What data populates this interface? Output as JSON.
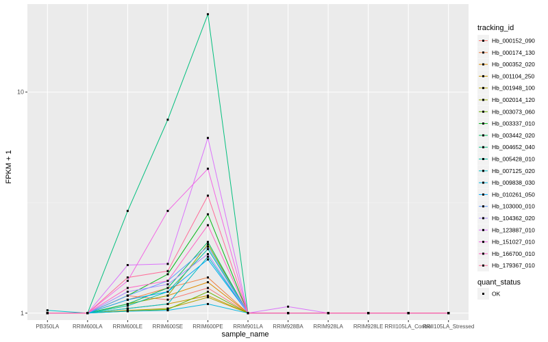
{
  "chart_data": {
    "type": "line",
    "xlabel": "sample_name",
    "ylabel": "FPKM + 1",
    "y_scale": "log10",
    "ylim": [
      0.93,
      25
    ],
    "y_ticks": [
      {
        "value": 1,
        "label": "1"
      },
      {
        "value": 10,
        "label": "10"
      }
    ],
    "grid": true,
    "legend_position": "right",
    "categories": [
      "PB350LA",
      "RRIM600LA",
      "RRIM600LE",
      "RRIM600SE",
      "RRIM600PE",
      "RRIM901LA",
      "RRIM928BA",
      "RRIM928LA",
      "RRIM928LE",
      "RRII105LA_Control",
      "RRII105LA_Stressed"
    ],
    "legend_title": "tracking_id",
    "series": [
      {
        "name": "Hb_000152_090",
        "color": "#F8766D",
        "values": [
          1,
          1,
          1.2,
          1.15,
          1.3,
          1,
          1,
          1,
          1,
          1,
          1
        ]
      },
      {
        "name": "Hb_000174_130",
        "color": "#EE8044",
        "values": [
          1,
          1,
          1.15,
          1.3,
          1.45,
          1,
          1,
          1,
          1,
          1,
          1
        ]
      },
      {
        "name": "Hb_000352_020",
        "color": "#DF8B00",
        "values": [
          1,
          1,
          1.1,
          1.2,
          1.38,
          1,
          1,
          1,
          1,
          1,
          1
        ]
      },
      {
        "name": "Hb_001104_250",
        "color": "#CC9600",
        "values": [
          1,
          1,
          1.05,
          1.1,
          1.2,
          1,
          1,
          1,
          1,
          1,
          1
        ]
      },
      {
        "name": "Hb_001948_100",
        "color": "#B3A000",
        "values": [
          1,
          1,
          1.03,
          1.05,
          1.18,
          1,
          1,
          1,
          1,
          1,
          1
        ]
      },
      {
        "name": "Hb_002014_120",
        "color": "#95A900",
        "values": [
          1,
          1,
          1.1,
          1.2,
          2.05,
          1,
          1,
          1,
          1,
          1,
          1
        ]
      },
      {
        "name": "Hb_003073_060",
        "color": "#6BB100",
        "values": [
          1,
          1,
          1.02,
          1.04,
          1.25,
          1,
          1,
          1,
          1,
          1,
          1
        ]
      },
      {
        "name": "Hb_003337_010",
        "color": "#00B813",
        "values": [
          1,
          1,
          1.2,
          1.5,
          2.8,
          1,
          1,
          1,
          1,
          1,
          1
        ]
      },
      {
        "name": "Hb_003442_020",
        "color": "#00BD5C",
        "values": [
          1,
          1,
          1.1,
          1.3,
          2.1,
          1,
          1,
          1,
          1,
          1,
          1
        ]
      },
      {
        "name": "Hb_004652_040",
        "color": "#00BF7D",
        "values": [
          1,
          1,
          2.9,
          7.5,
          22.5,
          1,
          1,
          1,
          1,
          1,
          1
        ]
      },
      {
        "name": "Hb_005428_010",
        "color": "#00C0A3",
        "values": [
          1,
          1,
          1.08,
          1.25,
          1.95,
          1,
          1,
          1,
          1,
          1,
          1
        ]
      },
      {
        "name": "Hb_007125_020",
        "color": "#00BCC4",
        "values": [
          1.03,
          1,
          1.05,
          1.1,
          1.8,
          1,
          1,
          1,
          1,
          1,
          1
        ]
      },
      {
        "name": "Hb_009838_030",
        "color": "#00B5E0",
        "values": [
          1,
          1,
          1.02,
          1.03,
          1.1,
          1,
          1,
          1,
          1,
          1,
          1
        ]
      },
      {
        "name": "Hb_010261_050",
        "color": "#00A8F8",
        "values": [
          1,
          1,
          1.15,
          1.25,
          1.75,
          1,
          1,
          1,
          1,
          1,
          1
        ]
      },
      {
        "name": "Hb_103000_010",
        "color": "#619CFF",
        "values": [
          1,
          1,
          1.2,
          1.4,
          2.0,
          1,
          1,
          1,
          1,
          1,
          1
        ]
      },
      {
        "name": "Hb_104362_020",
        "color": "#A58AFF",
        "values": [
          1,
          1,
          1.25,
          1.35,
          1.85,
          1,
          1,
          1,
          1,
          1,
          1
        ]
      },
      {
        "name": "Hb_123887_010",
        "color": "#DB72FB",
        "values": [
          1,
          1,
          1.65,
          1.67,
          6.2,
          1,
          1.07,
          1,
          1,
          1,
          1
        ]
      },
      {
        "name": "Hb_151027_010",
        "color": "#F365E4",
        "values": [
          1,
          1,
          1.4,
          2.9,
          4.5,
          1,
          1,
          1,
          1,
          1,
          1
        ]
      },
      {
        "name": "Hb_166700_010",
        "color": "#FF61C3",
        "values": [
          1,
          1,
          1.3,
          1.4,
          2.5,
          1,
          1,
          1,
          1,
          1,
          1
        ]
      },
      {
        "name": "Hb_179367_010",
        "color": "#FF6B98",
        "values": [
          1,
          1,
          1.45,
          1.55,
          3.4,
          1,
          1,
          1,
          1,
          1,
          1
        ]
      }
    ],
    "shape_legend": {
      "title": "quant_status",
      "entries": [
        "OK"
      ]
    }
  }
}
